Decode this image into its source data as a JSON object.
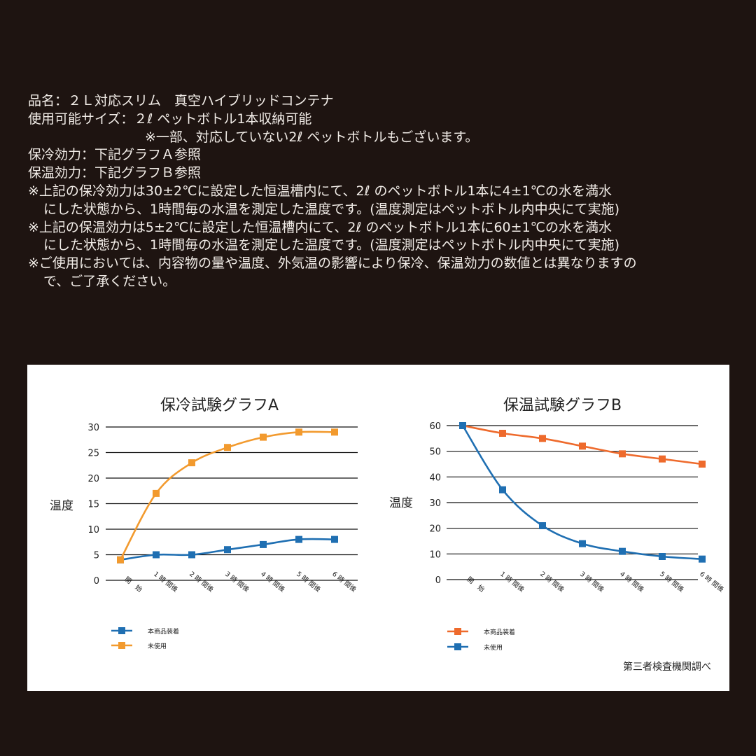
{
  "spec": {
    "lines": [
      "品名：２Ｌ対応スリム　真空ハイブリッドコンテナ",
      "使用可能サイズ：２ℓ ペットボトル1本収納可能",
      "※一部、対応していない2ℓ ペットボトルもございます。",
      "保冷効力：下記グラフＡ参照",
      "保温効力：下記グラフＢ参照",
      "※上記の保冷効力は30±2℃に設定した恒温槽内にて、2ℓ のペットボトル1本に4±1℃の水を満水",
      "にした状態から、1時間毎の水温を測定した温度です。(温度測定はペットボトル内中央にて実施)",
      "※上記の保温効力は5±2℃に設定した恒温槽内にて、2ℓ のペットボトル1本に60±1℃の水を満水",
      "にした状態から、1時間毎の水温を測定した温度です。(温度測定はペットボトル内中央にて実施)",
      "※ご使用においては、内容物の量や温度、外気温の影響により保冷、保温効力の数値とは異なりますの",
      "で、ご了承ください。"
    ]
  },
  "colors": {
    "background": "#1e1411",
    "orange_a": "#f29a2e",
    "blue": "#1f6fb2",
    "orange_b": "#ee6a2c",
    "grid": "#111111"
  },
  "chart_data": [
    {
      "type": "line",
      "title": "保冷試験グラフA",
      "ylabel": "温度",
      "categories": [
        "開　始",
        "1 時 間後",
        "2 時 間後",
        "3 時 間後",
        "4 時 間後",
        "5 時 間後",
        "6 時 間後"
      ],
      "ylim": [
        0,
        30
      ],
      "yticks": [
        0,
        5,
        10,
        15,
        20,
        25,
        30
      ],
      "legend": "bottom-left",
      "series": [
        {
          "name": "本商品装着",
          "color": "#1f6fb2",
          "values": [
            4,
            5,
            5,
            6,
            7,
            8,
            8
          ]
        },
        {
          "name": "未使用",
          "color": "#f29a2e",
          "values": [
            4,
            17,
            23,
            26,
            28,
            29,
            29
          ]
        }
      ]
    },
    {
      "type": "line",
      "title": "保温試験グラフB",
      "ylabel": "温度",
      "categories": [
        "開　始",
        "1 時 間後",
        "2 時 間後",
        "3 時 間後",
        "4 時 間後",
        "5 時 間後",
        "6 時 間後"
      ],
      "ylim": [
        0,
        60
      ],
      "yticks": [
        0,
        10,
        20,
        30,
        40,
        50,
        60
      ],
      "legend": "bottom-left",
      "series": [
        {
          "name": "本商品装着",
          "color": "#ee6a2c",
          "values": [
            60,
            57,
            55,
            52,
            49,
            47,
            45
          ]
        },
        {
          "name": "未使用",
          "color": "#1f6fb2",
          "values": [
            60,
            35,
            21,
            14,
            11,
            9,
            8
          ]
        }
      ]
    }
  ],
  "source_note": "第三者検査機関調べ"
}
